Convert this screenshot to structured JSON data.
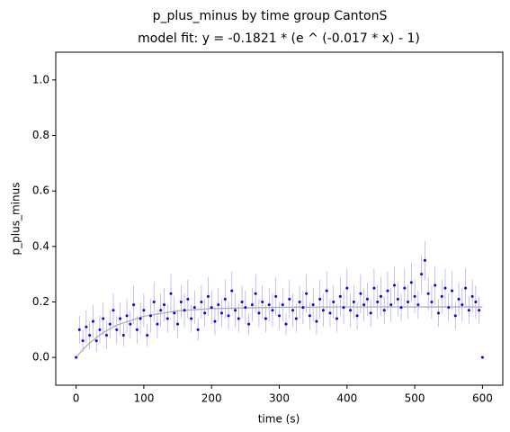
{
  "chart_data": {
    "type": "scatter",
    "title": "p_plus_minus by time group CantonS",
    "subtitle": "model fit: y = -0.1821 * (e ^ (-0.017 * x) - 1)",
    "xlabel": "time (s)",
    "ylabel": "p_plus_minus",
    "xlim": [
      -30,
      630
    ],
    "ylim": [
      -0.1,
      1.1
    ],
    "xticks": [
      0,
      100,
      200,
      300,
      400,
      500,
      600
    ],
    "yticks": [
      {
        "value": 0,
        "label": "0.0"
      },
      0.2,
      0.4,
      0.6,
      0.8,
      {
        "value": 1,
        "label": "1.0"
      }
    ],
    "color": "#0000ee",
    "error_color": "#9999ee",
    "fit_color": "#aaaaaa",
    "x": [
      0,
      5,
      10,
      15,
      20,
      25,
      30,
      35,
      40,
      45,
      50,
      55,
      60,
      65,
      70,
      75,
      80,
      85,
      90,
      95,
      100,
      105,
      110,
      115,
      120,
      125,
      130,
      135,
      140,
      145,
      150,
      155,
      160,
      165,
      170,
      175,
      180,
      185,
      190,
      195,
      200,
      205,
      210,
      215,
      220,
      225,
      230,
      235,
      240,
      245,
      250,
      255,
      260,
      265,
      270,
      275,
      280,
      285,
      290,
      295,
      300,
      305,
      310,
      315,
      320,
      325,
      330,
      335,
      340,
      345,
      350,
      355,
      360,
      365,
      370,
      375,
      380,
      385,
      390,
      395,
      400,
      405,
      410,
      415,
      420,
      425,
      430,
      435,
      440,
      445,
      450,
      455,
      460,
      465,
      470,
      475,
      480,
      485,
      490,
      495,
      500,
      505,
      510,
      515,
      520,
      525,
      530,
      535,
      540,
      545,
      550,
      555,
      560,
      565,
      570,
      575,
      580,
      585,
      590,
      595,
      600
    ],
    "values": [
      0.0,
      0.1,
      0.06,
      0.11,
      0.08,
      0.13,
      0.06,
      0.1,
      0.14,
      0.08,
      0.12,
      0.17,
      0.1,
      0.14,
      0.08,
      0.15,
      0.12,
      0.19,
      0.1,
      0.14,
      0.17,
      0.08,
      0.15,
      0.2,
      0.12,
      0.17,
      0.19,
      0.14,
      0.23,
      0.16,
      0.12,
      0.2,
      0.17,
      0.21,
      0.14,
      0.18,
      0.1,
      0.2,
      0.16,
      0.22,
      0.18,
      0.13,
      0.19,
      0.16,
      0.21,
      0.15,
      0.24,
      0.17,
      0.14,
      0.2,
      0.18,
      0.12,
      0.19,
      0.23,
      0.16,
      0.2,
      0.14,
      0.19,
      0.17,
      0.22,
      0.15,
      0.19,
      0.12,
      0.21,
      0.17,
      0.14,
      0.2,
      0.18,
      0.23,
      0.15,
      0.19,
      0.13,
      0.21,
      0.17,
      0.24,
      0.16,
      0.2,
      0.14,
      0.22,
      0.18,
      0.25,
      0.17,
      0.2,
      0.15,
      0.23,
      0.19,
      0.21,
      0.16,
      0.25,
      0.2,
      0.22,
      0.17,
      0.24,
      0.19,
      0.26,
      0.21,
      0.18,
      0.25,
      0.2,
      0.27,
      0.22,
      0.19,
      0.3,
      0.35,
      0.23,
      0.2,
      0.26,
      0.16,
      0.22,
      0.25,
      0.18,
      0.24,
      0.15,
      0.21,
      0.19,
      0.25,
      0.17,
      0.22,
      0.2,
      0.17,
      0.0
    ],
    "errors": [
      0,
      0.05,
      0.04,
      0.06,
      0.05,
      0.06,
      0.04,
      0.05,
      0.06,
      0.05,
      0.05,
      0.06,
      0.05,
      0.06,
      0.04,
      0.06,
      0.05,
      0.07,
      0.05,
      0.06,
      0.06,
      0.04,
      0.06,
      0.07,
      0.05,
      0.06,
      0.06,
      0.05,
      0.07,
      0.06,
      0.05,
      0.06,
      0.06,
      0.07,
      0.05,
      0.06,
      0.04,
      0.06,
      0.05,
      0.07,
      0.06,
      0.05,
      0.06,
      0.05,
      0.07,
      0.05,
      0.07,
      0.06,
      0.05,
      0.06,
      0.06,
      0.04,
      0.06,
      0.07,
      0.05,
      0.06,
      0.05,
      0.06,
      0.06,
      0.07,
      0.05,
      0.06,
      0.04,
      0.07,
      0.06,
      0.05,
      0.06,
      0.06,
      0.07,
      0.05,
      0.06,
      0.05,
      0.07,
      0.06,
      0.07,
      0.05,
      0.06,
      0.05,
      0.07,
      0.06,
      0.07,
      0.06,
      0.06,
      0.05,
      0.07,
      0.06,
      0.06,
      0.05,
      0.07,
      0.06,
      0.07,
      0.05,
      0.07,
      0.06,
      0.07,
      0.06,
      0.05,
      0.07,
      0.06,
      0.07,
      0.06,
      0.05,
      0.07,
      0.07,
      0.06,
      0.06,
      0.07,
      0.05,
      0.06,
      0.07,
      0.05,
      0.07,
      0.05,
      0.06,
      0.06,
      0.07,
      0.05,
      0.06,
      0.06,
      0.05,
      0
    ],
    "fit": {
      "x": [
        0,
        10,
        20,
        40,
        60,
        100,
        150,
        200,
        300,
        400,
        500,
        600
      ],
      "values": [
        0,
        0.0285,
        0.0525,
        0.0898,
        0.1164,
        0.1488,
        0.1679,
        0.176,
        0.181,
        0.182,
        0.1821,
        0.1821
      ]
    }
  }
}
